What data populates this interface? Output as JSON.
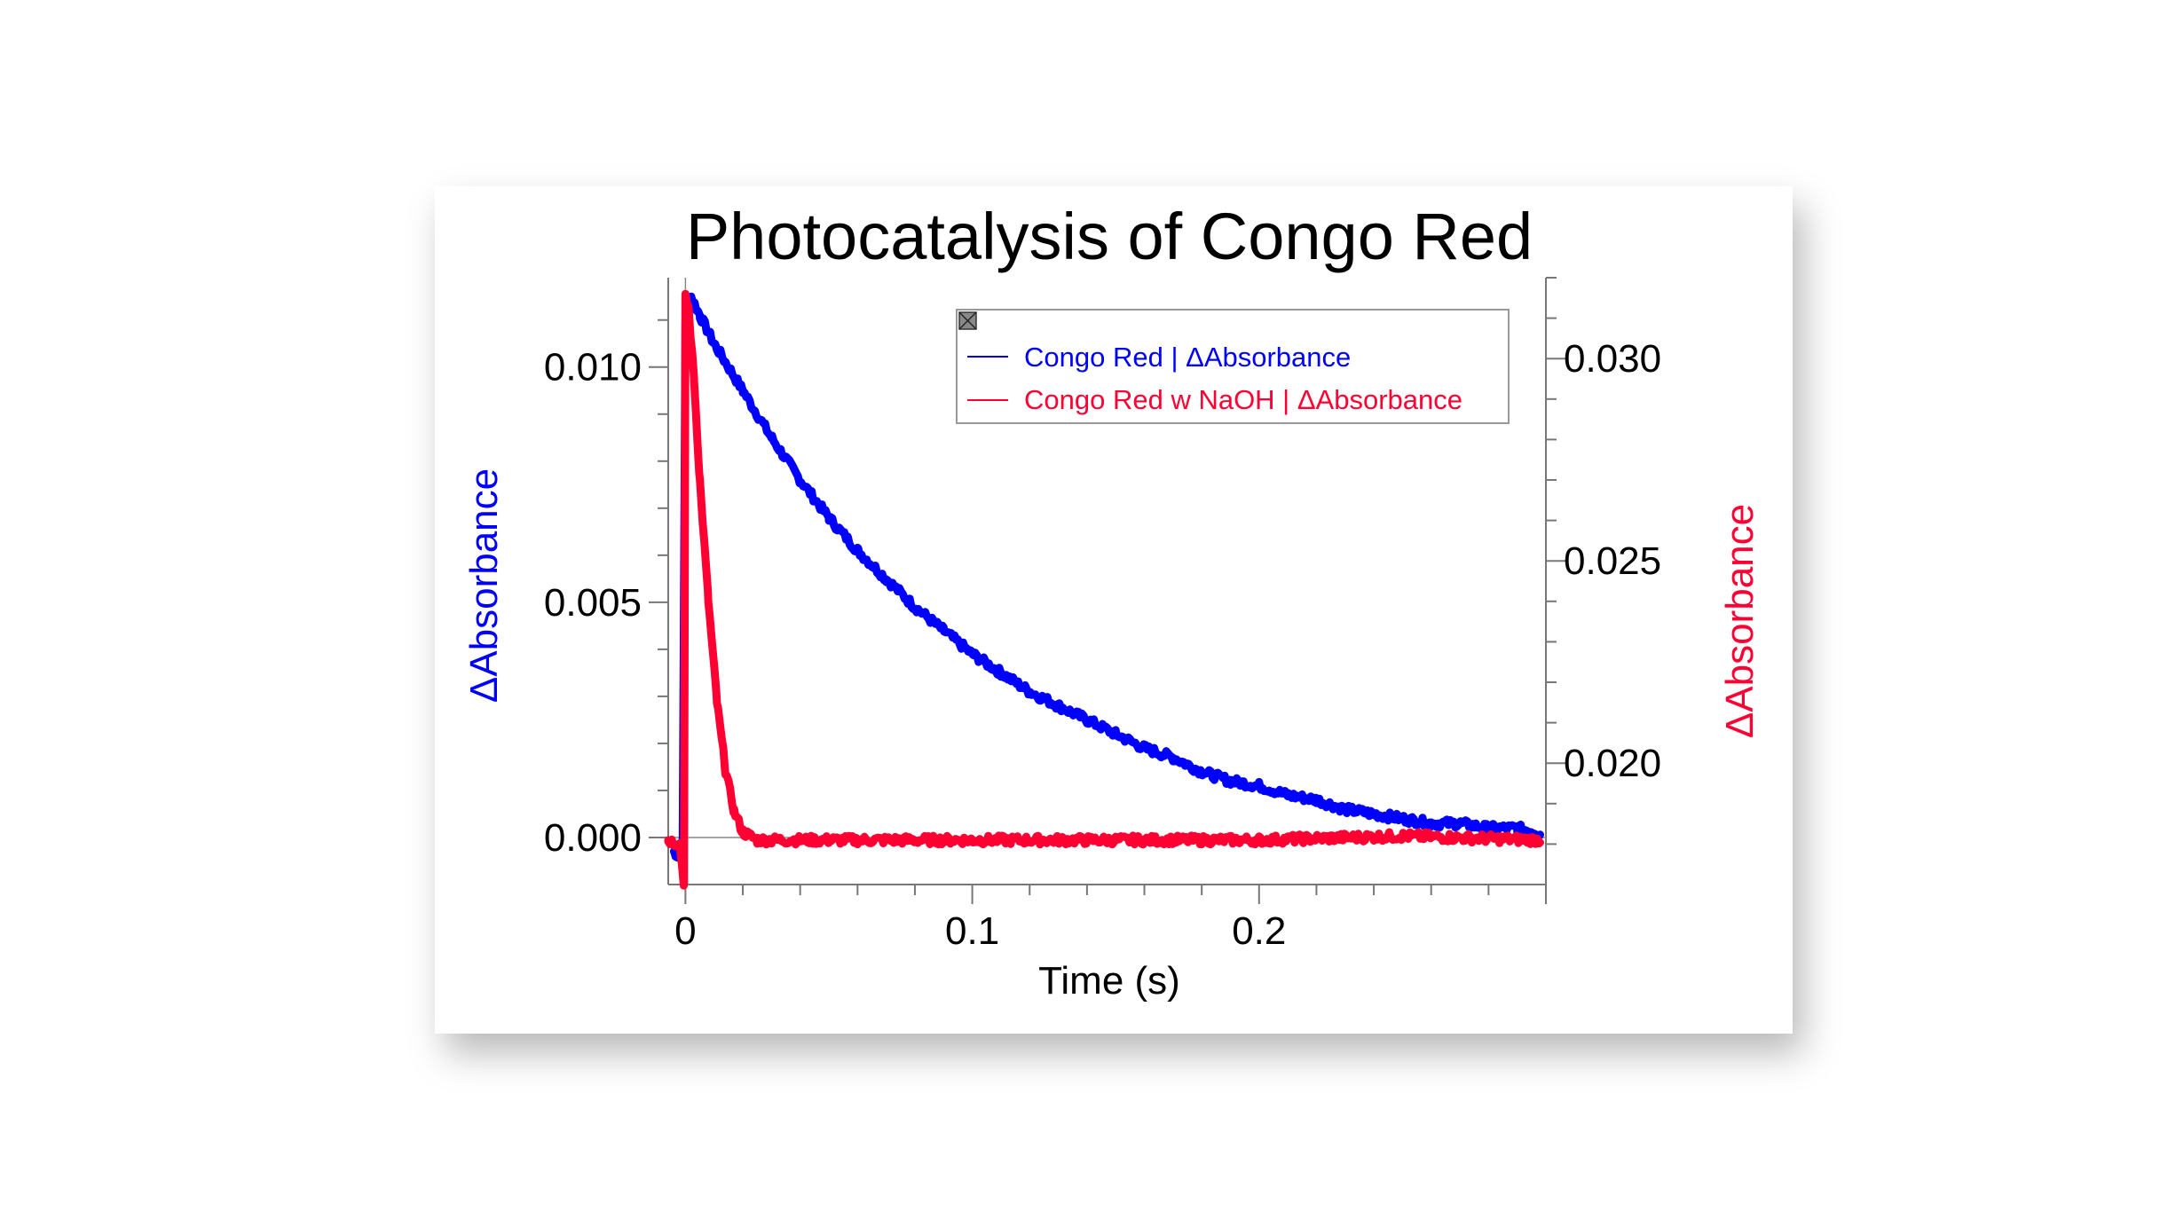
{
  "chart_data": {
    "type": "line",
    "title": "Photocatalysis of Congo Red",
    "xlabel": "Time (s)",
    "xlim": [
      -0.006,
      0.3
    ],
    "x_ticks": [
      0,
      0.1,
      0.2
    ],
    "x_tick_labels": [
      "0",
      "0.1",
      "0.2"
    ],
    "y_left": {
      "label": "ΔAbsorbance",
      "color": "#0000ff",
      "lim": [
        -0.001,
        0.0119
      ],
      "ticks": [
        0,
        0.005,
        0.01
      ],
      "tick_labels": [
        "0.000",
        "0.005",
        "0.010"
      ]
    },
    "y_right": {
      "label": "ΔAbsorbance",
      "color": "#ff0033",
      "lim": [
        0.017,
        0.032
      ],
      "ticks": [
        0.02,
        0.025,
        0.03
      ],
      "tick_labels": [
        "0.020",
        "0.025",
        "0.030"
      ]
    },
    "legend": {
      "placement": "top-right"
    },
    "series": [
      {
        "name": "Congo Red | ΔAbsorbance",
        "axis": "left",
        "color": "#0000ff",
        "x": [
          -0.004,
          -0.001,
          0,
          0.002,
          0.005,
          0.01,
          0.02,
          0.03,
          0.04,
          0.05,
          0.06,
          0.07,
          0.08,
          0.09,
          0.1,
          0.11,
          0.12,
          0.13,
          0.14,
          0.15,
          0.16,
          0.17,
          0.18,
          0.19,
          0.2,
          0.21,
          0.22,
          0.23,
          0.24,
          0.25,
          0.26,
          0.27,
          0.28,
          0.29,
          0.298
        ],
        "y": [
          -0.0003,
          -0.0005,
          0.011,
          0.0115,
          0.0111,
          0.0105,
          0.0095,
          0.0085,
          0.0076,
          0.0068,
          0.0061,
          0.0055,
          0.0049,
          0.0044,
          0.0039,
          0.0035,
          0.0031,
          0.0028,
          0.0025,
          0.0022,
          0.0019,
          0.0017,
          0.0014,
          0.0012,
          0.0011,
          0.0009,
          0.0008,
          0.0006,
          0.0005,
          0.0004,
          0.0003,
          0.0003,
          0.0002,
          0.0002,
          0.0001
        ]
      },
      {
        "name": "Congo Red w NaOH | ΔAbsorbance",
        "axis": "right",
        "color": "#ff0033",
        "x": [
          -0.006,
          -0.002,
          -0.0005,
          0,
          0.001,
          0.003,
          0.005,
          0.008,
          0.011,
          0.014,
          0.017,
          0.02,
          0.025,
          0.03,
          0.05,
          0.1,
          0.15,
          0.2,
          0.25,
          0.298
        ],
        "y": [
          0.0181,
          0.018,
          0.017,
          0.0315,
          0.0313,
          0.0295,
          0.027,
          0.024,
          0.0215,
          0.0198,
          0.0188,
          0.0183,
          0.0181,
          0.0181,
          0.0181,
          0.0181,
          0.0181,
          0.0181,
          0.0182,
          0.0181
        ]
      }
    ]
  }
}
